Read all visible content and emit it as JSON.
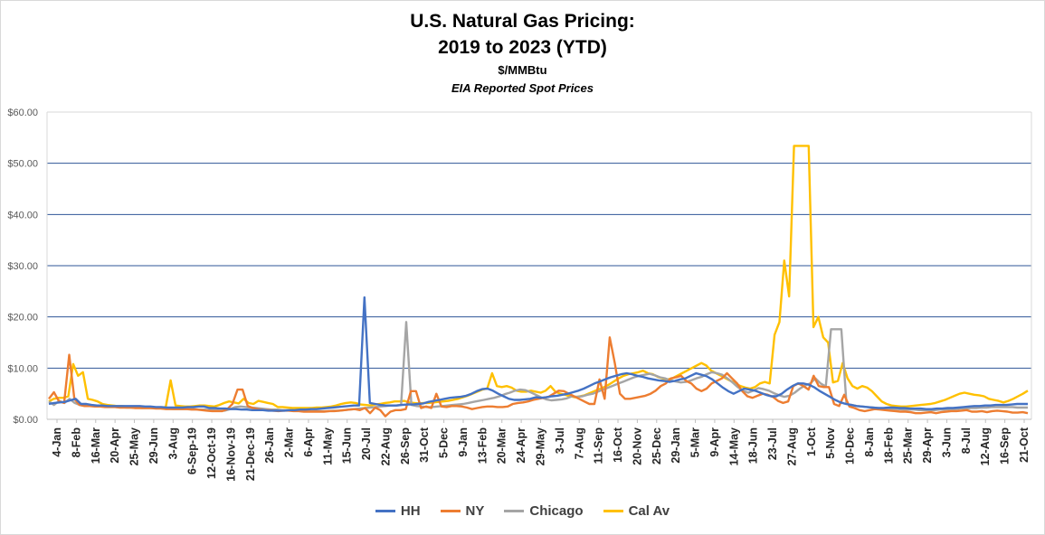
{
  "chart_data": {
    "type": "line",
    "title": "U.S. Natural Gas Pricing:",
    "title2": "2019 to 2023 (YTD)",
    "subtitle": "$/MMBtu",
    "subtitle2": "EIA Reported Spot Prices",
    "ylim": [
      0,
      60
    ],
    "yticks": [
      "$0.00",
      "$10.00",
      "$20.00",
      "$30.00",
      "$40.00",
      "$50.00",
      "$60.00"
    ],
    "grid": true,
    "legend_position": "bottom",
    "xticks": [
      "4-Jan",
      "8-Feb",
      "16-Mar",
      "20-Apr",
      "25-May",
      "29-Jun",
      "3-Aug",
      "6-Sep-19",
      "12-Oct-19",
      "16-Nov-19",
      "21-Dec-19",
      "26-Jan",
      "2-Mar",
      "6-Apr",
      "11-May",
      "15-Jun",
      "20-Jul",
      "22-Aug",
      "26-Sep",
      "31-Oct",
      "5-Dec",
      "9-Jan",
      "13-Feb",
      "20-Mar",
      "24-Apr",
      "29-May",
      "3-Jul",
      "7-Aug",
      "11-Sep",
      "16-Oct",
      "20-Nov",
      "25-Dec",
      "29-Jan",
      "5-Mar",
      "9-Apr",
      "14-May",
      "18-Jun",
      "23-Jul",
      "27-Aug",
      "1-Oct",
      "5-Nov",
      "10-Dec",
      "8-Jan",
      "18-Feb",
      "25-Mar",
      "29-Apr",
      "3-Jun",
      "8-Jul",
      "12-Aug",
      "16-Sep",
      "21-Oct"
    ],
    "series": [
      {
        "name": "HH",
        "color": "#4472C4",
        "values": [
          3,
          3.2,
          3.3,
          3.4,
          3.7,
          4,
          3,
          3,
          2.8,
          2.7,
          2.7,
          2.6,
          2.6,
          2.6,
          2.6,
          2.6,
          2.6,
          2.6,
          2.5,
          2.5,
          2.4,
          2.4,
          2.3,
          2.3,
          2.3,
          2.3,
          2.4,
          2.4,
          2.5,
          2.5,
          2.2,
          2.2,
          2.1,
          2.1,
          2,
          2,
          1.9,
          1.9,
          1.8,
          1.8,
          1.8,
          1.7,
          1.7,
          1.7,
          1.7,
          1.8,
          1.8,
          1.9,
          1.9,
          2,
          2,
          2.1,
          2.2,
          2.3,
          2.4,
          2.5,
          2.6,
          2.7,
          2.7,
          23.8,
          3.2,
          3,
          2.8,
          2.7,
          2.7,
          2.7,
          2.8,
          2.9,
          2.9,
          3,
          3.1,
          3.4,
          3.6,
          3.8,
          4,
          4.2,
          4.3,
          4.4,
          4.6,
          5,
          5.5,
          5.9,
          6,
          5.6,
          5,
          4.5,
          4,
          3.8,
          3.8,
          3.9,
          4,
          4.3,
          4.2,
          4.3,
          4.5,
          4.6,
          4.8,
          5,
          5.3,
          5.6,
          6,
          6.5,
          7,
          7.4,
          7.8,
          8.2,
          8.5,
          8.8,
          9,
          8.8,
          8.5,
          8.3,
          8,
          7.8,
          7.6,
          7.5,
          7.3,
          7.5,
          7.8,
          8,
          8.5,
          9,
          8.7,
          8.4,
          7.8,
          7,
          6.2,
          5.5,
          5,
          5.5,
          6,
          5.8,
          5.6,
          5.2,
          4.8,
          4.5,
          4.5,
          5,
          5.8,
          6.5,
          7,
          7,
          6.8,
          6.3,
          5.6,
          5,
          4.4,
          3.8,
          3.3,
          3,
          2.8,
          2.6,
          2.5,
          2.4,
          2.3,
          2.2,
          2.2,
          2.3,
          2.3,
          2.2,
          2.2,
          2.1,
          2.1,
          2.1,
          2,
          2,
          2.1,
          2.1,
          2.2,
          2.2,
          2.3,
          2.4,
          2.5,
          2.6,
          2.6,
          2.7,
          2.7,
          2.8,
          2.8,
          2.8,
          2.9,
          3,
          3,
          3
        ]
      },
      {
        "name": "NY",
        "color": "#ED7D31",
        "values": [
          4,
          5.3,
          3.5,
          3.2,
          12.6,
          4,
          2.8,
          2.6,
          2.6,
          2.5,
          2.5,
          2.4,
          2.4,
          2.4,
          2.3,
          2.3,
          2.3,
          2.2,
          2.2,
          2.2,
          2.2,
          2.1,
          2.1,
          2,
          2,
          2,
          2,
          2,
          1.9,
          1.9,
          1.8,
          1.7,
          1.6,
          1.6,
          1.6,
          2,
          3,
          5.8,
          5.8,
          2.6,
          2.2,
          2,
          1.8,
          1.8,
          1.7,
          1.6,
          1.7,
          1.7,
          1.6,
          1.6,
          1.5,
          1.5,
          1.5,
          1.5,
          1.5,
          1.6,
          1.6,
          1.7,
          1.8,
          1.9,
          2,
          1.8,
          2.2,
          1.2,
          2.3,
          1.8,
          0.6,
          1.5,
          1.8,
          1.8,
          2,
          5.5,
          5.5,
          2.2,
          2.5,
          2.2,
          5,
          2.5,
          2.4,
          2.6,
          2.6,
          2.5,
          2.3,
          2,
          2.2,
          2.4,
          2.5,
          2.5,
          2.4,
          2.4,
          2.5,
          3,
          3.2,
          3.3,
          3.5,
          3.8,
          4,
          4.2,
          4.4,
          5,
          5.6,
          5.5,
          5,
          4.5,
          4,
          3.5,
          3,
          3,
          7.8,
          4,
          16,
          11,
          5,
          4,
          4,
          4.2,
          4.4,
          4.6,
          5,
          5.6,
          6.5,
          7,
          8,
          8.2,
          8.5,
          7.5,
          7,
          6,
          5.5,
          6,
          7,
          7.5,
          8,
          9,
          8,
          7,
          5.5,
          4.5,
          4.2,
          4.6,
          5,
          4.8,
          4.4,
          3.6,
          3.2,
          3.5,
          6.5,
          7,
          6.5,
          5.8,
          8.5,
          6.5,
          6.3,
          6.3,
          3,
          2.6,
          4.8,
          2.5,
          2.2,
          1.8,
          1.6,
          1.8,
          2,
          1.9,
          1.8,
          1.7,
          1.6,
          1.5,
          1.5,
          1.4,
          1.2,
          1.2,
          1.3,
          1.4,
          1.2,
          1.4,
          1.5,
          1.6,
          1.6,
          1.7,
          1.8,
          1.5,
          1.5,
          1.6,
          1.4,
          1.6,
          1.7,
          1.6,
          1.5,
          1.3,
          1.3,
          1.4,
          1.2
        ]
      },
      {
        "name": "Chicago",
        "color": "#A5A5A5",
        "values": [
          3.5,
          2.8,
          3.6,
          3.2,
          4,
          3.2,
          2.8,
          2.7,
          2.6,
          2.6,
          2.5,
          2.5,
          2.5,
          2.4,
          2.4,
          2.3,
          2.3,
          2.3,
          2.2,
          2.2,
          2.2,
          2.2,
          2.1,
          2.1,
          2,
          2,
          2,
          2,
          2,
          1.9,
          1.9,
          1.8,
          1.8,
          1.7,
          1.7,
          2,
          2.4,
          2.5,
          2.4,
          2.3,
          2.2,
          2.1,
          2,
          1.9,
          1.9,
          1.8,
          1.8,
          1.7,
          1.7,
          1.6,
          1.6,
          1.6,
          1.6,
          1.6,
          1.6,
          1.7,
          1.7,
          1.8,
          1.9,
          2,
          2.1,
          2.2,
          2.3,
          2.4,
          2.5,
          2.6,
          2.7,
          2.7,
          2.8,
          19,
          2.8,
          2.6,
          2.5,
          2.4,
          2.4,
          2.5,
          2.6,
          2.7,
          2.8,
          2.9,
          3,
          3.2,
          3.4,
          3.6,
          3.8,
          4,
          4.2,
          4.5,
          4.9,
          5.2,
          5.6,
          5.8,
          5.7,
          5.3,
          4.8,
          4.3,
          3.9,
          3.7,
          3.8,
          3.9,
          4.1,
          4.5,
          4.4,
          4.5,
          4.8,
          5,
          5.4,
          5.8,
          6.2,
          6.6,
          7,
          7.4,
          7.8,
          8.2,
          8.5,
          8.7,
          8.9,
          8.6,
          8.2,
          8,
          7.6,
          7.4,
          7.2,
          7.3,
          7.6,
          8,
          8.3,
          8.8,
          9.2,
          9,
          8.7,
          8,
          7.2,
          6.3,
          5.6,
          5.2,
          5.6,
          6.1,
          5.9,
          5.6,
          5.1,
          4.7,
          4.4,
          4.6,
          5.2,
          6,
          6.6,
          7,
          8,
          7,
          6.4,
          17.6,
          17.6,
          17.6,
          3,
          2.8,
          2.6,
          2.5,
          2.4,
          2.3,
          2.2,
          2.1,
          2.1,
          2,
          2,
          1.9,
          1.9,
          1.9,
          1.8,
          1.8,
          1.8,
          1.8,
          1.9,
          1.9,
          2,
          2,
          2.1,
          2.1,
          2.2,
          2.2,
          2.3,
          2.3,
          2.4,
          2.4,
          2.4,
          2.4,
          2.4,
          2.3,
          2.3,
          2.3
        ]
      },
      {
        "name": "Cal Av",
        "color": "#FFC000",
        "values": [
          3.5,
          4,
          4.2,
          4.2,
          4.5,
          10.8,
          8.5,
          9.2,
          4,
          3.8,
          3.5,
          3,
          2.8,
          2.7,
          2.6,
          2.6,
          2.5,
          2.5,
          2.5,
          2.4,
          2.4,
          2.4,
          2.3,
          2.3,
          2.4,
          7.6,
          2.7,
          2.6,
          2.5,
          2.5,
          2.6,
          2.7,
          2.7,
          2.6,
          2.5,
          2.8,
          3.2,
          3.5,
          3.3,
          3.1,
          4,
          3.2,
          3,
          3.6,
          3.4,
          3.2,
          3,
          2.4,
          2.4,
          2.3,
          2.2,
          2.2,
          2.2,
          2.2,
          2.2,
          2.3,
          2.3,
          2.4,
          2.5,
          2.7,
          3,
          3.2,
          3.3,
          3.2,
          2.9,
          2.8,
          2.7,
          2.9,
          3,
          3.2,
          3.3,
          3.5,
          3.5,
          3.6,
          3.3,
          3.2,
          3.1,
          3.2,
          3.2,
          3.3,
          3.4,
          3.5,
          3.6,
          3.8,
          4,
          4.3,
          4.6,
          5,
          5.4,
          5.8,
          6,
          9,
          6.5,
          6.3,
          6.5,
          6.2,
          5.6,
          5.4,
          5.4,
          5.6,
          5.4,
          5.2,
          5.6,
          6.5,
          5.4,
          5,
          4.8,
          4.5,
          4.3,
          4.5,
          4.7,
          5.1,
          5.5,
          5.9,
          6.3,
          6.8,
          7.4,
          8,
          8.5,
          8.8,
          9,
          9.2,
          9.5,
          9,
          8.8,
          8.3,
          8,
          7.8,
          8,
          8.5,
          9,
          9.5,
          10,
          10.5,
          11,
          10.5,
          9.5,
          9,
          8.5,
          8,
          7.5,
          7,
          6.5,
          6.2,
          6,
          6.3,
          7,
          7.3,
          7,
          16.5,
          19,
          31,
          24,
          53.4,
          53.4,
          53.4,
          53.4,
          18,
          20,
          16,
          15,
          7.2,
          7.5,
          11,
          8,
          6.5,
          6,
          6.5,
          6.2,
          5.5,
          4.5,
          3.5,
          3,
          2.7,
          2.6,
          2.5,
          2.5,
          2.6,
          2.7,
          2.8,
          2.9,
          3,
          3.2,
          3.5,
          3.8,
          4.2,
          4.6,
          5,
          5.2,
          5,
          4.8,
          4.7,
          4.5,
          4,
          3.8,
          3.6,
          3.3,
          3.6,
          4,
          4.5,
          5,
          5.6
        ]
      }
    ]
  }
}
